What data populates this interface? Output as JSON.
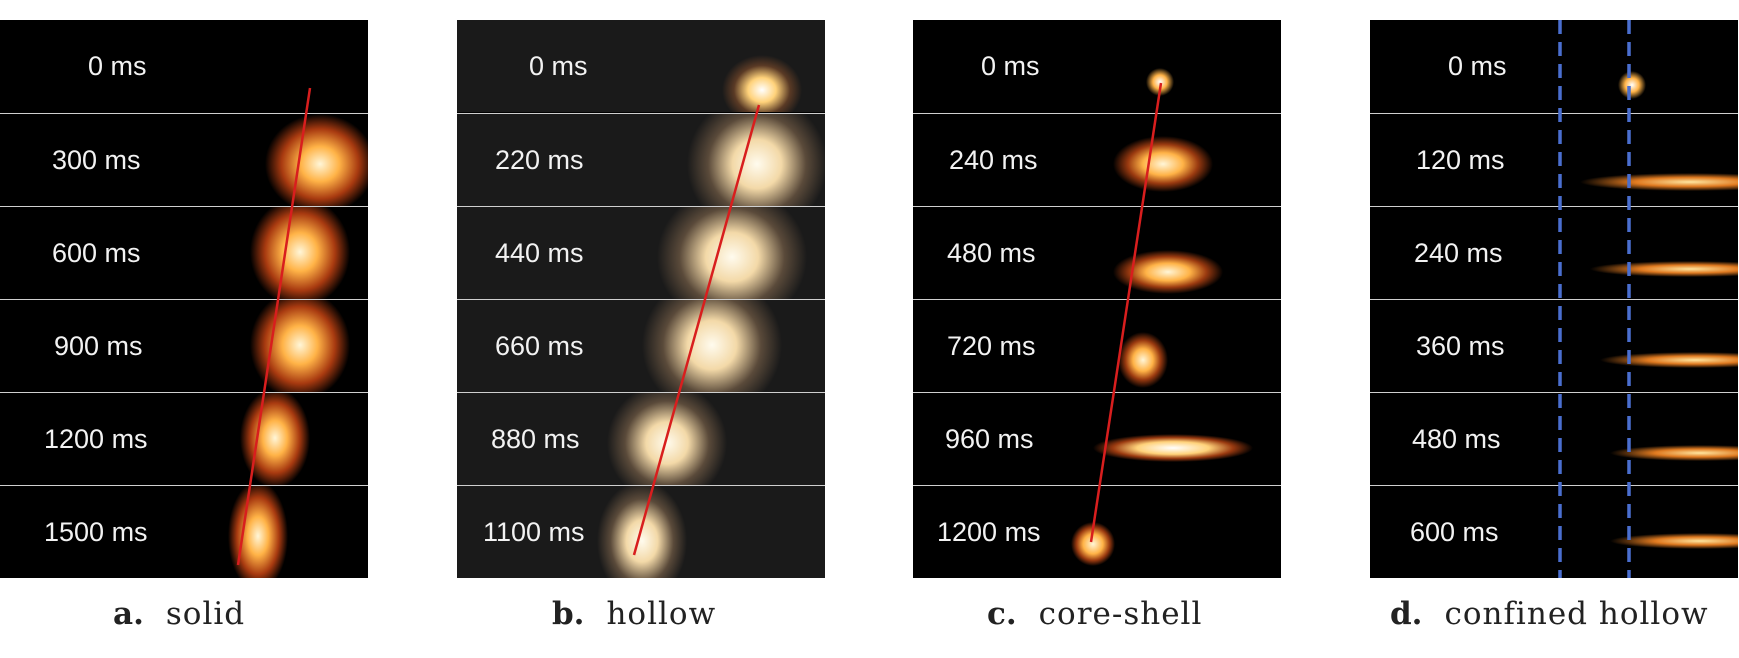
{
  "panels": [
    {
      "letter": "a.",
      "name": "solid",
      "times": [
        "0 ms",
        "300 ms",
        "600 ms",
        "900 ms",
        "1200 ms",
        "1500 ms"
      ]
    },
    {
      "letter": "b.",
      "name": "hollow",
      "times": [
        "0 ms",
        "220 ms",
        "440 ms",
        "660 ms",
        "880 ms",
        "1100 ms"
      ]
    },
    {
      "letter": "c.",
      "name": "core-shell",
      "times": [
        "0 ms",
        "240 ms",
        "480 ms",
        "720 ms",
        "960 ms",
        "1200 ms"
      ]
    },
    {
      "letter": "d.",
      "name": "confined hollow",
      "times": [
        "0 ms",
        "120 ms",
        "240 ms",
        "360 ms",
        "480 ms",
        "600 ms"
      ]
    }
  ],
  "colors": {
    "trajectory_line": "#d81e1e",
    "boundary_dashed": "#4a6fd0",
    "frame_border": "#cfcfcf"
  }
}
